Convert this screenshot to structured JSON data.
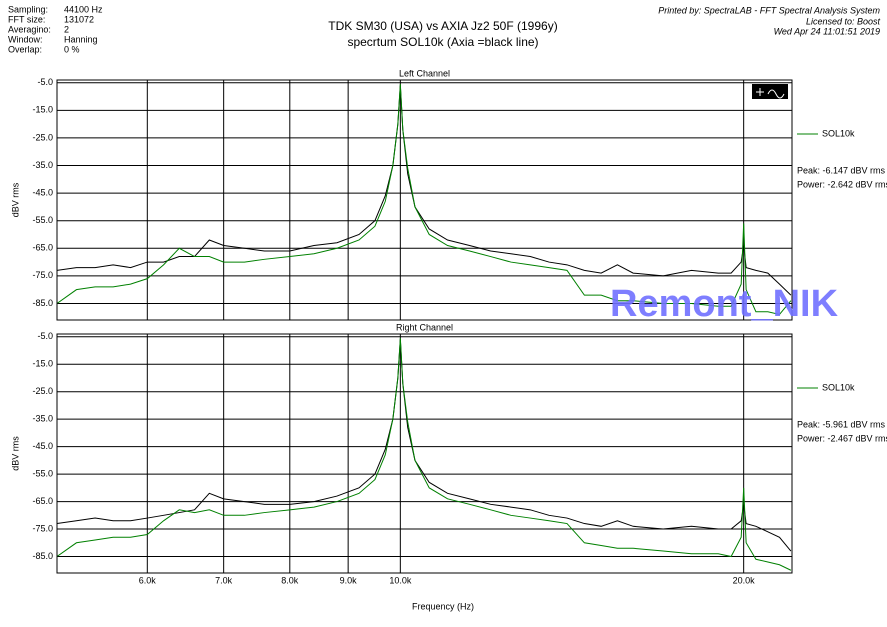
{
  "header": {
    "title": "TDK SM30 (USA) vs AXIA Jz2 50F (1996y)",
    "subtitle": "specrtum SOL10k (Axia =black line)",
    "settings": [
      {
        "label": "Sampling:",
        "value": "44100 Hz"
      },
      {
        "label": "FFT size:",
        "value": "131072"
      },
      {
        "label": "Averagino:",
        "value": "2"
      },
      {
        "label": "Window:",
        "value": "Hanning"
      },
      {
        "label": "Overlap:",
        "value": "0 %"
      }
    ],
    "printed_by": [
      "Printed by: SpectraLAB - FFT Spectral Analysis System",
      "Licensed to: Boost",
      "Wed Apr 24 11:01:51 2019"
    ],
    "watermark": "Remont_NIK"
  },
  "chart_data": [
    {
      "type": "line",
      "title": "Left Channel",
      "y_label": "dBV rms",
      "log_x": true,
      "grid": true,
      "annotations": [
        "Peak: -6.147 dBV rms",
        "Power: -2.642 dBV rms"
      ],
      "x": [
        5000,
        5200,
        5400,
        5600,
        5800,
        6000,
        6200,
        6400,
        6600,
        6800,
        7000,
        7300,
        7600,
        8000,
        8400,
        8800,
        9200,
        9500,
        9700,
        9850,
        9950,
        10000,
        10050,
        10150,
        10300,
        10600,
        11000,
        11500,
        12000,
        12500,
        13000,
        13500,
        14000,
        14500,
        15000,
        15500,
        16000,
        17000,
        18000,
        19000,
        19500,
        19900,
        20000,
        20100,
        20500,
        21000,
        21500,
        22000
      ],
      "series": [
        {
          "color": "#000000",
          "values": [
            -73,
            -72,
            -72,
            -71,
            -72,
            -70,
            -70,
            -68,
            -68,
            -62,
            -64,
            -65,
            -66,
            -66,
            -64,
            -63,
            -60,
            -55,
            -46,
            -35,
            -20,
            -6,
            -22,
            -38,
            -50,
            -58,
            -62,
            -64,
            -66,
            -67,
            -68,
            -70,
            -71,
            -73,
            -74,
            -71,
            -74,
            -75,
            -73,
            -74,
            -74,
            -70,
            -64,
            -72,
            -73,
            -74,
            -78,
            -82
          ]
        },
        {
          "name": "SOL10k",
          "color": "#008000",
          "values": [
            -85,
            -80,
            -79,
            -79,
            -78,
            -76,
            -71,
            -65,
            -68,
            -68,
            -70,
            -70,
            -69,
            -68,
            -67,
            -65,
            -62,
            -57,
            -48,
            -35,
            -20,
            -5.5,
            -22,
            -36,
            -50,
            -60,
            -64,
            -66,
            -68,
            -70,
            -71,
            -72,
            -73,
            -82,
            -82,
            -84,
            -84,
            -85,
            -85,
            -86,
            -86,
            -78,
            -56,
            -80,
            -88,
            -88,
            -89,
            -84
          ]
        }
      ],
      "xlim": [
        5000,
        22050
      ],
      "xticks": [
        6000,
        7000,
        8000,
        9000,
        10000,
        20000
      ],
      "ylim": [
        -91,
        -4
      ],
      "yticks": [
        {
          "value": -5,
          "label": "-5.0"
        },
        {
          "value": -15,
          "label": "-15.0"
        },
        {
          "value": -25,
          "label": "-25.0"
        },
        {
          "value": -35,
          "label": "-35.0"
        },
        {
          "value": -45,
          "label": "-45.0"
        },
        {
          "value": -55,
          "label": "-55.0"
        },
        {
          "value": -65,
          "label": "-65.0"
        },
        {
          "value": -75,
          "label": "-75.0"
        },
        {
          "value": -85,
          "label": "-85.0"
        }
      ]
    },
    {
      "type": "line",
      "title": "Right Channel",
      "y_label": "dBV rms",
      "x_label": "Frequency (Hz)",
      "log_x": true,
      "grid": true,
      "annotations": [
        "Peak: -5.961 dBV rms",
        "Power: -2.467 dBV rms"
      ],
      "x": [
        5000,
        5200,
        5400,
        5600,
        5800,
        6000,
        6200,
        6400,
        6600,
        6800,
        7000,
        7300,
        7600,
        8000,
        8400,
        8800,
        9200,
        9500,
        9700,
        9850,
        9950,
        10000,
        10050,
        10150,
        10300,
        10600,
        11000,
        11500,
        12000,
        12500,
        13000,
        13500,
        14000,
        14500,
        15000,
        15500,
        16000,
        17000,
        18000,
        19000,
        19500,
        19900,
        20000,
        20100,
        20500,
        21000,
        21500,
        22000
      ],
      "series": [
        {
          "color": "#000000",
          "values": [
            -73,
            -72,
            -71,
            -72,
            -72,
            -71,
            -70,
            -69,
            -68,
            -62,
            -64,
            -65,
            -66,
            -66,
            -65,
            -63,
            -60,
            -55,
            -46,
            -35,
            -20,
            -6,
            -22,
            -38,
            -50,
            -58,
            -62,
            -64,
            -66,
            -67,
            -68,
            -70,
            -71,
            -73,
            -74,
            -72,
            -74,
            -75,
            -74,
            -75,
            -75,
            -72,
            -66,
            -73,
            -74,
            -76,
            -78,
            -83
          ]
        },
        {
          "name": "SOL10k",
          "color": "#008000",
          "values": [
            -85,
            -80,
            -79,
            -78,
            -78,
            -77,
            -72,
            -68,
            -69,
            -68,
            -70,
            -70,
            -69,
            -68,
            -67,
            -65,
            -62,
            -57,
            -48,
            -35,
            -20,
            -5.5,
            -22,
            -36,
            -50,
            -60,
            -64,
            -66,
            -68,
            -70,
            -71,
            -72,
            -73,
            -80,
            -81,
            -82,
            -82,
            -83,
            -84,
            -84,
            -85,
            -78,
            -60,
            -80,
            -86,
            -87,
            -88,
            -90
          ]
        }
      ],
      "xlim": [
        5000,
        22050
      ],
      "xticks": [
        {
          "value": 6000,
          "label": "6.0k"
        },
        {
          "value": 7000,
          "label": "7.0k"
        },
        {
          "value": 8000,
          "label": "8.0k"
        },
        {
          "value": 9000,
          "label": "9.0k"
        },
        {
          "value": 10000,
          "label": "10.0k"
        },
        {
          "value": 20000,
          "label": "20.0k"
        }
      ],
      "ylim": [
        -91,
        -4
      ],
      "yticks": [
        {
          "value": -5,
          "label": "-5.0"
        },
        {
          "value": -15,
          "label": "-15.0"
        },
        {
          "value": -25,
          "label": "-25.0"
        },
        {
          "value": -35,
          "label": "-35.0"
        },
        {
          "value": -45,
          "label": "-45.0"
        },
        {
          "value": -55,
          "label": "-55.0"
        },
        {
          "value": -65,
          "label": "-65.0"
        },
        {
          "value": -75,
          "label": "-75.0"
        },
        {
          "value": -85,
          "label": "-85.0"
        }
      ]
    }
  ]
}
